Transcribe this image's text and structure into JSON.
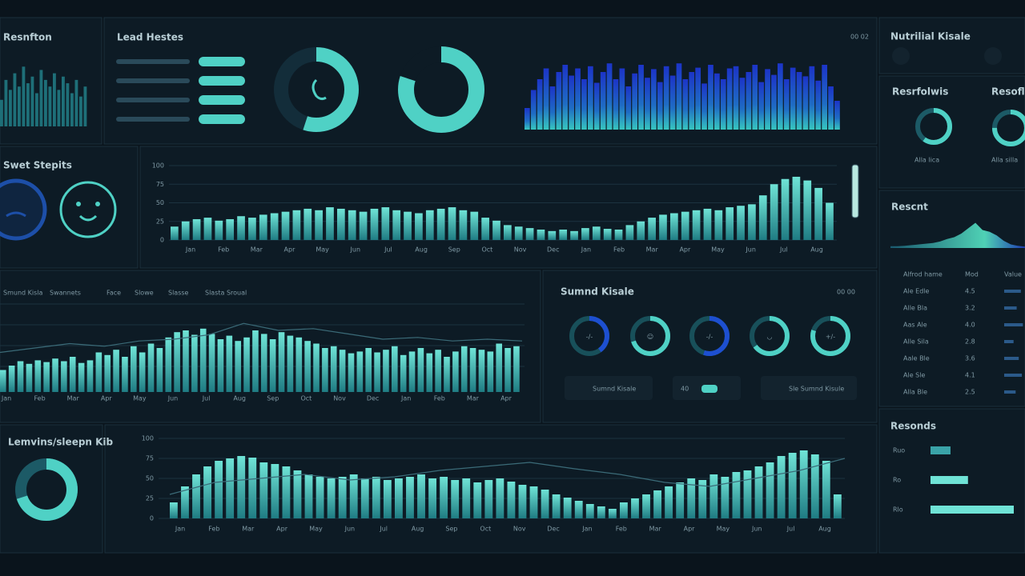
{
  "resonance": {
    "title": "Resnfton",
    "bars": [
      40,
      70,
      55,
      80,
      60,
      90,
      65,
      75,
      50,
      85,
      70,
      60,
      80,
      55,
      75,
      65,
      50,
      70,
      45,
      60
    ]
  },
  "lead": {
    "title": "Lead Hestes"
  },
  "donuts": [
    55,
    80
  ],
  "spectrum": {
    "tag": "00 02",
    "values": [
      30,
      55,
      70,
      85,
      60,
      80,
      90,
      75,
      85,
      70,
      88,
      65,
      80,
      92,
      70,
      85,
      60,
      78,
      90,
      72,
      84,
      66,
      88,
      75,
      92,
      70,
      80,
      86,
      64,
      90,
      78,
      70,
      85,
      88,
      72,
      80,
      90,
      66,
      84,
      76,
      92,
      70,
      86,
      80,
      74,
      88,
      68,
      90,
      60,
      40
    ]
  },
  "status": {
    "title": "Swet Stepits"
  },
  "trend1": {
    "ylim": [
      0,
      100
    ],
    "yticks": [
      0,
      25,
      50,
      75,
      100
    ],
    "xlabels": [
      "Jan",
      "Feb",
      "Mar",
      "Apr",
      "May",
      "Jun",
      "Jul",
      "Aug",
      "Sep",
      "Oct",
      "Nov",
      "Dec",
      "Jan",
      "Feb",
      "Mar",
      "Apr",
      "May",
      "Jun",
      "Jul",
      "Aug"
    ],
    "values": [
      18,
      25,
      28,
      30,
      26,
      28,
      32,
      30,
      34,
      36,
      38,
      40,
      42,
      40,
      44,
      42,
      40,
      38,
      42,
      44,
      40,
      38,
      36,
      40,
      42,
      44,
      40,
      38,
      30,
      26,
      20,
      18,
      16,
      14,
      12,
      14,
      12,
      16,
      18,
      15,
      14,
      20,
      25,
      30,
      34,
      36,
      38,
      40,
      42,
      40,
      44,
      46,
      48,
      60,
      75,
      82,
      85,
      80,
      70,
      50
    ]
  },
  "trend2": {
    "legend": [
      "Smund Kisla",
      "Swannets",
      "Face",
      "Slowe",
      "Slasse",
      "Slasta Sroual"
    ],
    "xlabels": [
      "Jan",
      "Feb",
      "Mar",
      "Apr",
      "May",
      "Jun",
      "Jul",
      "Aug",
      "Sep",
      "Oct",
      "Nov",
      "Dec",
      "Jan",
      "Feb",
      "Mar",
      "Apr"
    ],
    "values": [
      25,
      30,
      35,
      32,
      36,
      34,
      38,
      35,
      40,
      33,
      36,
      45,
      42,
      48,
      40,
      52,
      45,
      55,
      50,
      62,
      68,
      70,
      65,
      72,
      66,
      60,
      64,
      58,
      62,
      70,
      66,
      60,
      68,
      64,
      62,
      58,
      55,
      50,
      52,
      48,
      44,
      46,
      50,
      45,
      48,
      52,
      42,
      46,
      50,
      44,
      48,
      40,
      46,
      52,
      50,
      48,
      46,
      55,
      50,
      52
    ],
    "line": [
      45,
      50,
      55,
      52,
      58,
      60,
      65,
      78,
      70,
      72,
      66,
      60,
      62,
      58,
      60,
      58
    ]
  },
  "gauges": {
    "title": "Sumnd Kisale",
    "tag": "00 00",
    "items": [
      {
        "value": 40,
        "label": "-/-"
      },
      {
        "value": 70,
        "label": "☺"
      },
      {
        "value": 55,
        "label": "-/-"
      },
      {
        "value": 65,
        "label": "◡"
      },
      {
        "value": 80,
        "label": "+/-"
      }
    ],
    "buttons": [
      "Sumnd Kisale",
      "40",
      "Sle Sumnd Kisule"
    ]
  },
  "sleep": {
    "title": "Lemvins/sleepn Kib",
    "donut": 70
  },
  "trend3": {
    "ylim": [
      0,
      100
    ],
    "yticks": [
      0,
      25,
      50,
      75,
      100
    ],
    "xlabels": [
      "Jan",
      "Feb",
      "Mar",
      "Apr",
      "May",
      "Jun",
      "Jul",
      "Aug",
      "Sep",
      "Oct",
      "Nov",
      "Dec",
      "Jan",
      "Feb",
      "Mar",
      "Apr",
      "May",
      "Jun",
      "Jul",
      "Aug"
    ],
    "values": [
      20,
      40,
      55,
      65,
      72,
      75,
      78,
      76,
      70,
      68,
      65,
      60,
      55,
      52,
      50,
      52,
      55,
      50,
      52,
      48,
      50,
      52,
      55,
      50,
      52,
      48,
      50,
      45,
      48,
      50,
      46,
      42,
      40,
      36,
      30,
      26,
      22,
      18,
      15,
      12,
      20,
      25,
      30,
      35,
      40,
      45,
      50,
      48,
      55,
      52,
      58,
      60,
      65,
      70,
      78,
      82,
      85,
      80,
      72,
      30
    ],
    "line": [
      30,
      45,
      50,
      55,
      48,
      52,
      60,
      65,
      70,
      62,
      55,
      45,
      40,
      50,
      60,
      75
    ]
  },
  "side": {
    "title": "Nutrilial Kisale",
    "sub1": "Resrfolwis",
    "sub2": "Resofle",
    "gauges": [
      60,
      75
    ],
    "gauge_labels": [
      "Alla lica",
      "Alla silla"
    ],
    "recent": "Rescnt",
    "area": [
      5,
      5,
      6,
      8,
      10,
      12,
      14,
      18,
      25,
      30,
      40,
      55,
      70,
      50,
      45,
      35,
      20,
      10,
      6,
      4
    ],
    "table": {
      "header": [
        "Alfrod hame",
        "Mod",
        "Value"
      ],
      "rows": [
        [
          "Ale Edle",
          "4.5",
          80
        ],
        [
          "Alle Bla",
          "3.2",
          60
        ],
        [
          "Aas Ale",
          "4.0",
          90
        ],
        [
          "Alle Sila",
          "2.8",
          45
        ],
        [
          "Aale Ble",
          "3.6",
          70
        ],
        [
          "Ale Sle",
          "4.1",
          85
        ],
        [
          "Alla Ble",
          "2.5",
          55
        ]
      ]
    },
    "reports": "Resonds",
    "report_bars": [
      {
        "label": "Ruo",
        "value": 24
      },
      {
        "label": "Ro",
        "value": 45
      },
      {
        "label": "Rlo",
        "value": 100
      }
    ]
  }
}
